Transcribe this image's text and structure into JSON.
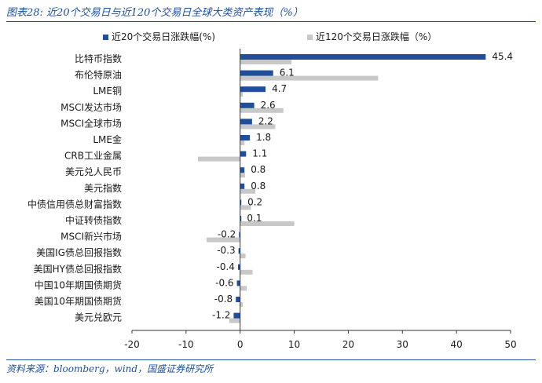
{
  "title": "图表28: 近20个交易日与近120个交易日全球大类资产表现（%）",
  "source": "资料来源：bloomberg，wind，国盛证券研究所",
  "chart_data": {
    "type": "bar",
    "orientation": "horizontal",
    "categories": [
      "比特币指数",
      "布伦特原油",
      "LME铜",
      "MSCI发达市场",
      "MSCI全球市场",
      "LME金",
      "CRB工业金属",
      "美元兑人民币",
      "美元指数",
      "中债信用债总财富指数",
      "中证转债指数",
      "MSCI新兴市场",
      "美国IG债总回报指数",
      "美国HY债总回报指数",
      "中国10年期国债期货",
      "美国10年期国债期货",
      "美元兑欧元"
    ],
    "series": [
      {
        "name": "近20个交易日涨跌幅(%)",
        "color": "#1f4e9a",
        "values": [
          45.4,
          6.1,
          4.7,
          2.6,
          2.2,
          1.8,
          1.1,
          0.8,
          0.8,
          0.2,
          0.1,
          -0.2,
          -0.3,
          -0.4,
          -0.6,
          -0.8,
          -1.2
        ]
      },
      {
        "name": "近120个交易日涨跌幅（%）",
        "color": "#c8c8c8",
        "values": [
          9.5,
          25.5,
          0.5,
          8.0,
          6.5,
          0.8,
          -7.8,
          0.9,
          2.8,
          2.0,
          10.0,
          -6.2,
          1.0,
          2.3,
          1.2,
          0.5,
          -2.0
        ]
      }
    ],
    "data_labels": [
      "45.4",
      "6.1",
      "4.7",
      "2.6",
      "2.2",
      "1.8",
      "1.1",
      "0.8",
      "0.8",
      "0.2",
      "0.1",
      "-0.2",
      "-0.3",
      "-0.4",
      "-0.6",
      "-0.8",
      "-1.2"
    ],
    "x_ticks": [
      "-20",
      "-10",
      "0",
      "10",
      "20",
      "30",
      "40",
      "50"
    ],
    "xlim": [
      -20,
      50
    ],
    "legend_position": "top",
    "grid": false
  }
}
